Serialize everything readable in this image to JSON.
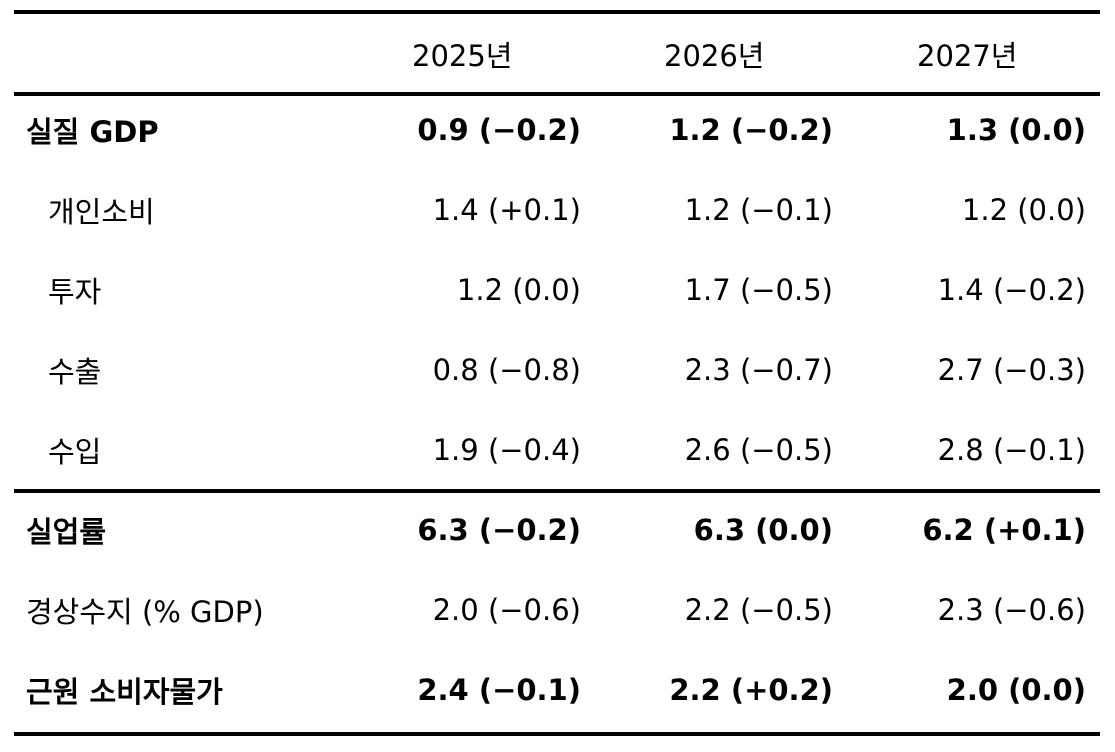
{
  "header": {
    "col1": "2025년",
    "col2": "2026년",
    "col3": "2027년"
  },
  "rows": [
    {
      "label": "실질 GDP",
      "v1": "0.9 (−0.2)",
      "v2": "1.2 (−0.2)",
      "v3": "1.3 (0.0)",
      "bold": true
    },
    {
      "label": "개인소비",
      "v1": "1.4 (+0.1)",
      "v2": "1.2 (−0.1)",
      "v3": "1.2 (0.0)",
      "bold": false
    },
    {
      "label": "투자",
      "v1": "1.2 (0.0)",
      "v2": "1.7 (−0.5)",
      "v3": "1.4 (−0.2)",
      "bold": false
    },
    {
      "label": "수출",
      "v1": "0.8 (−0.8)",
      "v2": "2.3 (−0.7)",
      "v3": "2.7 (−0.3)",
      "bold": false
    },
    {
      "label": "수입",
      "v1": "1.9 (−0.4)",
      "v2": "2.6 (−0.5)",
      "v3": "2.8 (−0.1)",
      "bold": false
    },
    {
      "label": "실업률",
      "v1": "6.3 (−0.2)",
      "v2": "6.3 (0.0)",
      "v3": "6.2 (+0.1)",
      "bold": true
    },
    {
      "label": "경상수지 (% GDP)",
      "v1": "2.0 (−0.6)",
      "v2": "2.2 (−0.5)",
      "v3": "2.3 (−0.6)",
      "bold": false
    },
    {
      "label": "근원 소비자물가",
      "v1": "2.4 (−0.1)",
      "v2": "2.2 (+0.2)",
      "v3": "2.0 (0.0)",
      "bold": true
    }
  ]
}
